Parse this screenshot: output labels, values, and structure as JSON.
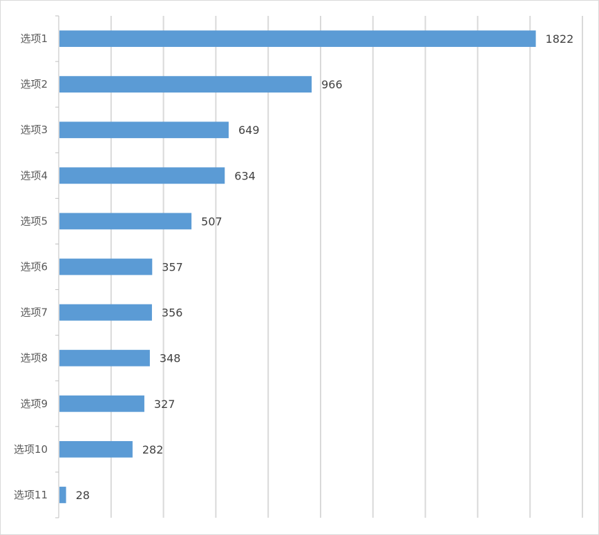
{
  "chart_data": {
    "type": "bar",
    "orientation": "horizontal",
    "categories": [
      "选项1",
      "选项2",
      "选项3",
      "选项4",
      "选项5",
      "选项6",
      "选项7",
      "选项8",
      "选项9",
      "选项10",
      "选项11"
    ],
    "values": [
      1822,
      966,
      649,
      634,
      507,
      357,
      356,
      348,
      327,
      282,
      28
    ],
    "xlim": [
      0,
      2000
    ],
    "grid": "vertical",
    "legend": "none",
    "bar_color": "#5b9bd5",
    "data_labels": true
  }
}
